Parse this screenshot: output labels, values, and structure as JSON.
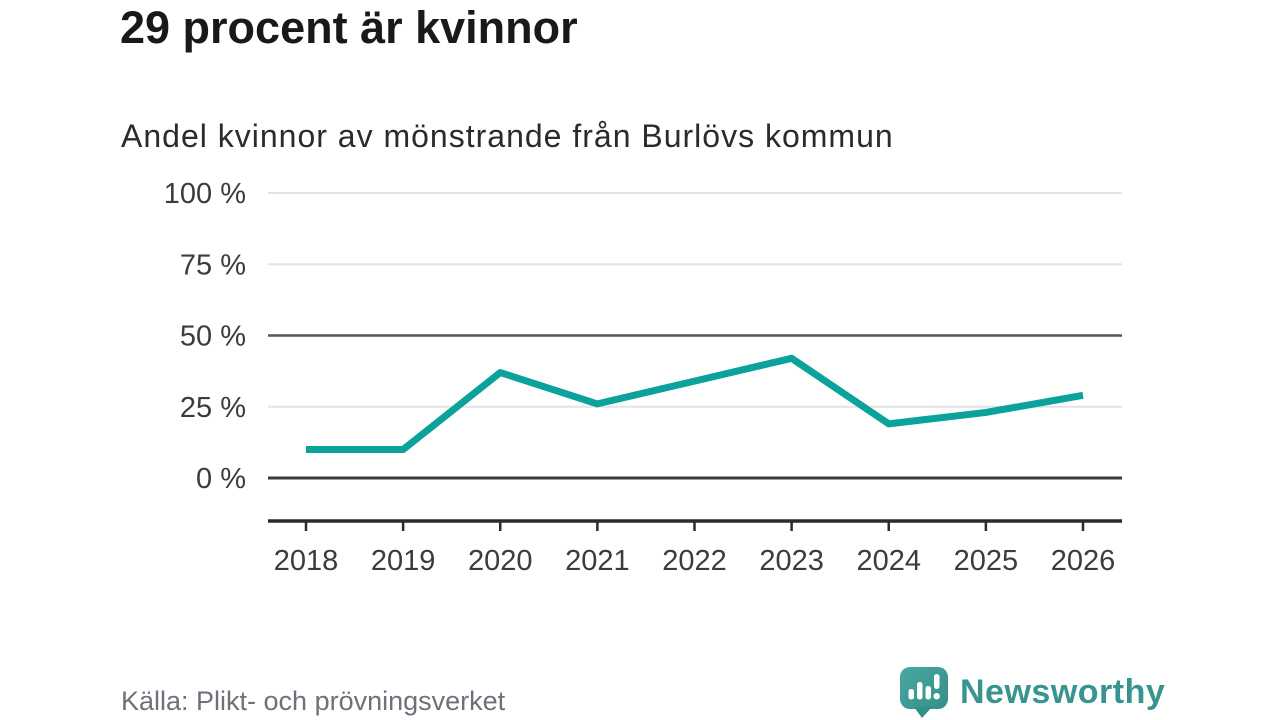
{
  "header": {
    "title": "29 procent är kvinnor",
    "subtitle": "Andel kvinnor av mönstrande från Burlövs kommun"
  },
  "footer": {
    "source": "Källa: Plikt- och prövningsverket",
    "brand": "Newsworthy"
  },
  "colors": {
    "line": "#0aa29a",
    "grid_light": "#e4e4e6",
    "grid_mid": "#55555d",
    "grid_zero": "#3a3a3a",
    "axis": "#2b2b2b",
    "tick_label": "#3c3c3c",
    "title": "#191919",
    "subtitle": "#2b2b2b",
    "source": "#70707a",
    "brand_teal": "#38948e",
    "logo_teal_light": "#4aa8a1",
    "logo_teal_dark": "#338f89"
  },
  "chart_data": {
    "type": "line",
    "title": "29 procent är kvinnor",
    "subtitle": "Andel kvinnor av mönstrande från Burlövs kommun",
    "x": [
      2018,
      2019,
      2020,
      2021,
      2022,
      2023,
      2024,
      2025,
      2026
    ],
    "series": [
      {
        "name": "Andel kvinnor av mönstrande",
        "values": [
          10,
          10,
          37,
          26,
          34,
          42,
          19,
          23,
          29
        ]
      }
    ],
    "unit": "%",
    "ytick_suffix": " %",
    "yticks": [
      0,
      25,
      50,
      75,
      100
    ],
    "ylim": [
      0,
      100
    ],
    "grid": true,
    "legend": "none",
    "xlabel": "",
    "ylabel": ""
  }
}
